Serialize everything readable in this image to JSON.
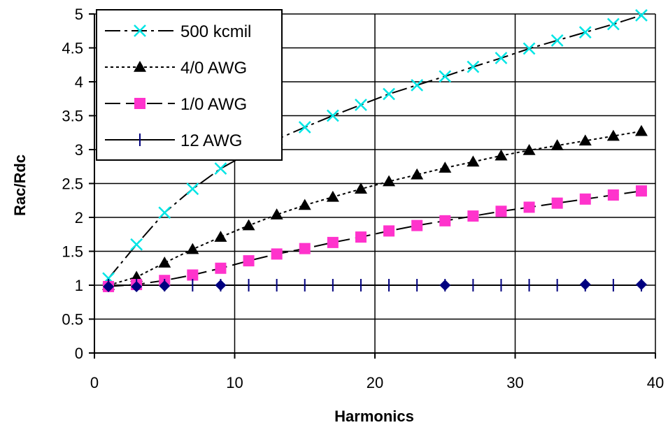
{
  "chart_data": {
    "type": "scatter",
    "title": "",
    "xlabel": "Harmonics",
    "ylabel": "Rac/Rdc",
    "xlim": [
      0,
      40
    ],
    "ylim": [
      0,
      5
    ],
    "xticks": [
      0,
      10,
      20,
      30,
      40
    ],
    "yticks": [
      0,
      0.5,
      1,
      1.5,
      2,
      2.5,
      3,
      3.5,
      4,
      4.5,
      5
    ],
    "grid": true,
    "legend_position": "top-left",
    "series": [
      {
        "name": "500 kcmil",
        "marker": "x",
        "marker_color": "#00e5e5",
        "line_style": "long-dash-dot",
        "x": [
          1,
          3,
          5,
          7,
          9,
          11,
          13,
          15,
          17,
          19,
          21,
          23,
          25,
          27,
          29,
          31,
          33,
          35,
          37,
          39
        ],
        "values": [
          1.1,
          1.6,
          2.07,
          2.42,
          2.72,
          2.95,
          3.15,
          3.33,
          3.5,
          3.66,
          3.82,
          3.95,
          4.08,
          4.22,
          4.35,
          4.49,
          4.61,
          4.73,
          4.85,
          4.98
        ]
      },
      {
        "name": "4/0 AWG",
        "marker": "triangle",
        "marker_color": "#000000",
        "line_style": "dotted",
        "x": [
          1,
          3,
          5,
          7,
          9,
          11,
          13,
          15,
          17,
          19,
          21,
          23,
          25,
          27,
          29,
          31,
          33,
          35,
          37,
          39
        ],
        "values": [
          1.0,
          1.12,
          1.33,
          1.53,
          1.71,
          1.88,
          2.04,
          2.18,
          2.3,
          2.42,
          2.53,
          2.63,
          2.73,
          2.82,
          2.91,
          2.99,
          3.06,
          3.13,
          3.2,
          3.27
        ]
      },
      {
        "name": "1/0 AWG",
        "marker": "square",
        "marker_color": "#ff33cc",
        "line_style": "dashed",
        "x": [
          1,
          3,
          5,
          7,
          9,
          11,
          13,
          15,
          17,
          19,
          21,
          23,
          25,
          27,
          29,
          31,
          33,
          35,
          37,
          39
        ],
        "values": [
          0.98,
          1.01,
          1.07,
          1.15,
          1.25,
          1.36,
          1.46,
          1.54,
          1.63,
          1.71,
          1.8,
          1.88,
          1.95,
          2.02,
          2.09,
          2.15,
          2.21,
          2.27,
          2.33,
          2.39
        ]
      },
      {
        "name": "12 AWG",
        "marker": "plus",
        "marker_color": "#000080",
        "line_style": "solid",
        "x": [
          1,
          3,
          5,
          7,
          9,
          11,
          13,
          15,
          17,
          19,
          21,
          23,
          25,
          27,
          29,
          31,
          33,
          35,
          37,
          39
        ],
        "values": [
          1.0,
          1.0,
          1.0,
          1.0,
          1.0,
          1.0,
          1.0,
          1.0,
          1.0,
          1.0,
          1.0,
          1.0,
          1.0,
          1.0,
          1.0,
          1.0,
          1.0,
          1.0,
          1.0,
          1.0
        ]
      }
    ],
    "extra_points": {
      "marker": "diamond",
      "marker_color": "#000080",
      "x": [
        1,
        3,
        5,
        9,
        25,
        35,
        39
      ],
      "values": [
        0.98,
        0.98,
        0.99,
        1.0,
        1.0,
        1.01,
        1.01
      ]
    }
  }
}
